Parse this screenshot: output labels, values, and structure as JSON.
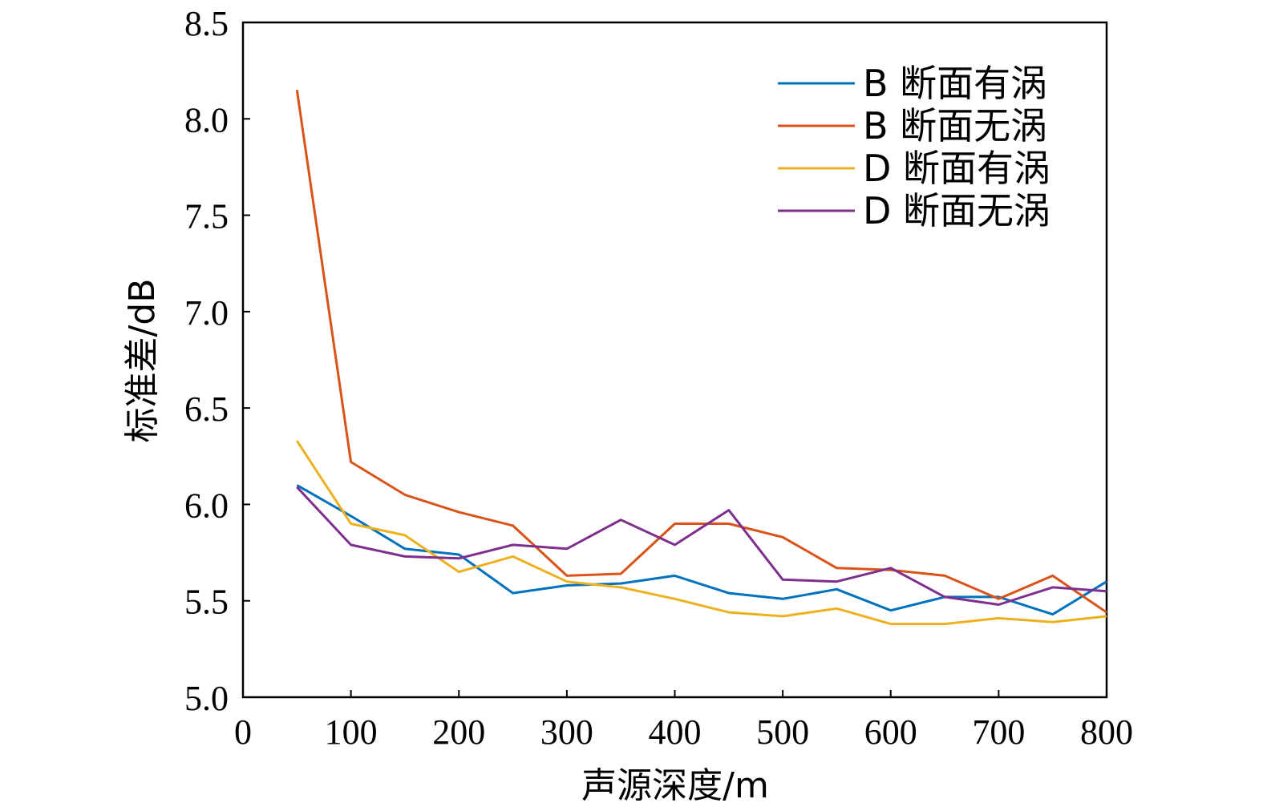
{
  "chart_data": {
    "type": "line",
    "title": "",
    "xlabel": "声源深度/m",
    "ylabel": "标准差/dB",
    "xlim": [
      0,
      800
    ],
    "ylim": [
      5.0,
      8.5
    ],
    "xticks": [
      0,
      100,
      200,
      300,
      400,
      500,
      600,
      700,
      800
    ],
    "yticks": [
      "5.0",
      "5.5",
      "6.0",
      "6.5",
      "7.0",
      "7.5",
      "8.0",
      "8.5"
    ],
    "grid": false,
    "legend_position": "top-right",
    "x": [
      50,
      100,
      150,
      200,
      250,
      300,
      350,
      400,
      450,
      500,
      550,
      600,
      650,
      700,
      750,
      800
    ],
    "series": [
      {
        "name": "B 断面有涡",
        "color": "#0072BD",
        "values": [
          6.1,
          5.94,
          5.77,
          5.74,
          5.54,
          5.58,
          5.59,
          5.63,
          5.54,
          5.51,
          5.56,
          5.45,
          5.52,
          5.52,
          5.43,
          5.6
        ]
      },
      {
        "name": "B 断面无涡",
        "color": "#D95319",
        "values": [
          8.15,
          6.22,
          6.05,
          5.96,
          5.89,
          5.63,
          5.64,
          5.9,
          5.9,
          5.83,
          5.67,
          5.66,
          5.63,
          5.51,
          5.63,
          5.44
        ]
      },
      {
        "name": "D 断面有涡",
        "color": "#EDB120",
        "values": [
          6.33,
          5.9,
          5.84,
          5.65,
          5.73,
          5.6,
          5.57,
          5.51,
          5.44,
          5.42,
          5.46,
          5.38,
          5.38,
          5.41,
          5.39,
          5.42
        ]
      },
      {
        "name": "D 断面无涡",
        "color": "#7E2F8E",
        "values": [
          6.09,
          5.79,
          5.73,
          5.72,
          5.79,
          5.77,
          5.92,
          5.79,
          5.97,
          5.61,
          5.6,
          5.67,
          5.52,
          5.48,
          5.57,
          5.55
        ]
      }
    ]
  }
}
